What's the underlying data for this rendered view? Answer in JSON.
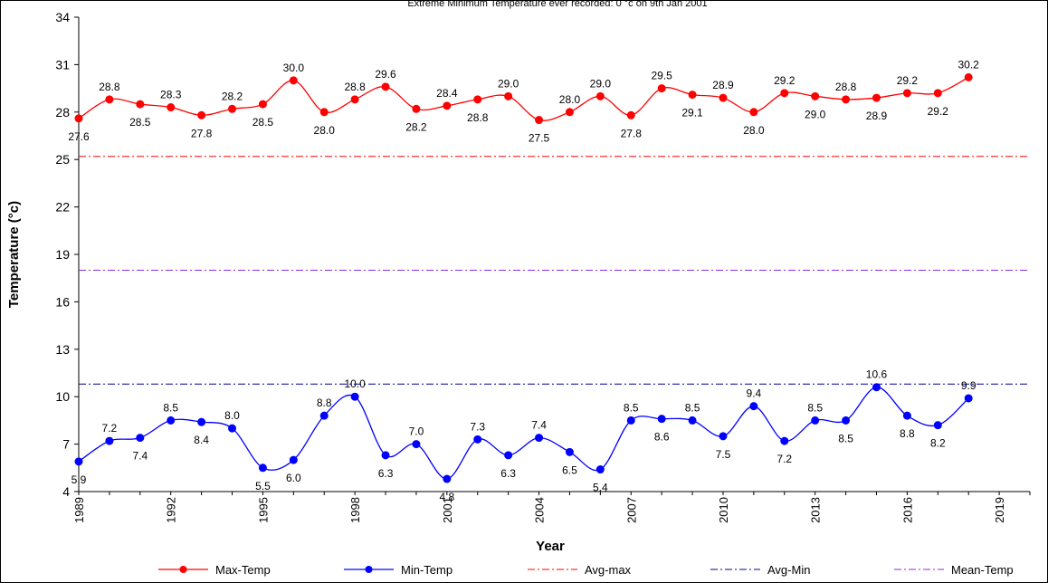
{
  "subtitle": "Extreme Minimum Temperature  ever recorded: 0 °c on   9th Jan 2001",
  "chart_data": {
    "type": "line",
    "xlabel": "Year",
    "ylabel": "Temperature (°c)",
    "ylim": [
      4,
      34
    ],
    "yticks": [
      4,
      7,
      10,
      13,
      16,
      19,
      22,
      25,
      28,
      31,
      34
    ],
    "xlim": [
      1989,
      2020
    ],
    "xticks": [
      1989,
      1992,
      1995,
      1998,
      2001,
      2004,
      2007,
      2010,
      2013,
      2016,
      2019
    ],
    "x": [
      1989,
      1990,
      1991,
      1992,
      1993,
      1994,
      1995,
      1996,
      1997,
      1998,
      1999,
      2000,
      2001,
      2002,
      2003,
      2004,
      2005,
      2006,
      2007,
      2008,
      2009,
      2010,
      2011,
      2012,
      2013,
      2014,
      2015,
      2016,
      2017,
      2018
    ],
    "series": [
      {
        "name": "Max-Temp",
        "color": "#ff0000",
        "values": [
          27.6,
          28.8,
          28.5,
          28.3,
          27.8,
          28.2,
          28.5,
          30.0,
          28.0,
          28.8,
          29.6,
          28.2,
          28.4,
          28.8,
          29.0,
          27.5,
          28.0,
          29.0,
          27.8,
          29.5,
          29.1,
          28.9,
          28.0,
          29.2,
          29.0,
          28.8,
          28.9,
          29.2,
          29.2,
          30.2
        ],
        "labels": [
          "27.6",
          "28.8",
          "28.5",
          "28.3",
          "27.8",
          "28.2",
          "28.5",
          "30.0",
          "28.0",
          "28.8",
          "29.6",
          "28.2",
          "28.4",
          "28.8",
          "29.0",
          "27.5",
          "28.0",
          "29.0",
          "27.8",
          "29.5",
          "29.1",
          "28.9",
          "28.0",
          "29.2",
          "29.0",
          "28.8",
          "28.9",
          "29.2",
          "29.2",
          "30.2"
        ],
        "label_pos": [
          "below",
          "above",
          "below",
          "above",
          "below",
          "above",
          "below",
          "above",
          "below",
          "above",
          "above",
          "below",
          "above",
          "below",
          "above",
          "below",
          "above",
          "above",
          "below",
          "above",
          "below",
          "above",
          "below",
          "above",
          "below",
          "above",
          "below",
          "above",
          "below",
          "above"
        ]
      },
      {
        "name": "Min-Temp",
        "color": "#0000ff",
        "values": [
          5.9,
          7.2,
          7.4,
          8.5,
          8.4,
          8.0,
          5.5,
          6.0,
          8.8,
          10.0,
          6.3,
          7.0,
          4.8,
          7.3,
          6.3,
          7.4,
          6.5,
          5.4,
          8.5,
          8.6,
          8.5,
          7.5,
          9.4,
          7.2,
          8.5,
          8.5,
          10.6,
          8.8,
          8.2,
          9.9
        ],
        "labels": [
          "5.9",
          "7.2",
          "7.4",
          "8.5",
          "8.4",
          "8.0",
          "5.5",
          "6.0",
          "8.8",
          "10.0",
          "6.3",
          "7.0",
          "4.8",
          "7.3",
          "6.3",
          "7.4",
          "6.5",
          "5.4",
          "8.5",
          "8.6",
          "8.5",
          "7.5",
          "9.4",
          "7.2",
          "8.5",
          "8.5",
          "10.6",
          "8.8",
          "8.2",
          "9.9"
        ],
        "label_pos": [
          "below",
          "above",
          "below",
          "above",
          "below",
          "above",
          "below",
          "below",
          "above",
          "above",
          "below",
          "above",
          "below",
          "above",
          "below",
          "above",
          "below",
          "below",
          "above",
          "below",
          "above",
          "below",
          "above",
          "below",
          "above",
          "below",
          "above",
          "below",
          "below",
          "above"
        ]
      }
    ],
    "reference_lines": [
      {
        "name": "Avg-max",
        "value": 25.2,
        "color": "#ff0000",
        "style": "dash-dot"
      },
      {
        "name": "Avg-Min",
        "value": 10.8,
        "color": "#0000a0",
        "style": "dash-dot"
      },
      {
        "name": "Mean-Temp",
        "value": 18.0,
        "color": "#8a2be2",
        "style": "dash-dot"
      }
    ],
    "legend": {
      "position": "bottom",
      "entries": [
        {
          "name": "Max-Temp",
          "color": "#ff0000",
          "kind": "line-marker"
        },
        {
          "name": "Min-Temp",
          "color": "#0000ff",
          "kind": "line-marker"
        },
        {
          "name": "Avg-max",
          "color": "#ff0000",
          "kind": "dash-dot"
        },
        {
          "name": "Avg-Min",
          "color": "#0000a0",
          "kind": "dash-dot"
        },
        {
          "name": "Mean-Temp",
          "color": "#8a2be2",
          "kind": "dash-dot"
        }
      ]
    },
    "grid": false
  }
}
